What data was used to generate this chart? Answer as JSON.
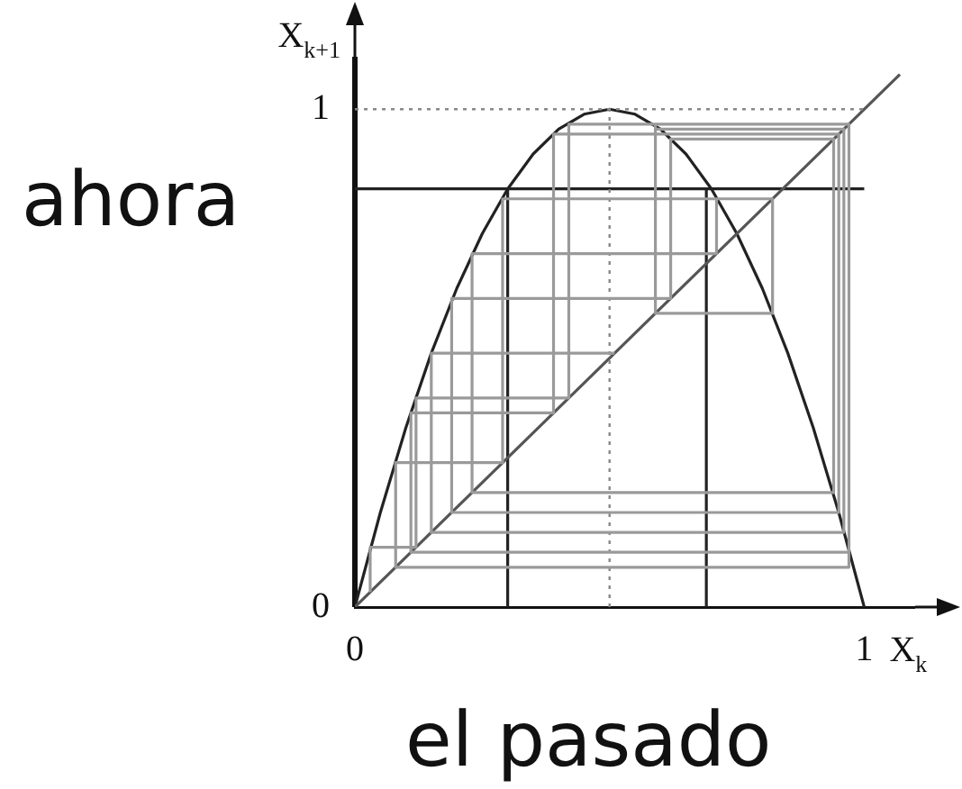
{
  "chart_data": {
    "type": "line",
    "xlabel": "X$_{k}$",
    "ylabel": "X$_{k+1}$",
    "annotations": [
      "ahora",
      "el pasado"
    ],
    "xlim": [
      0,
      1.1
    ],
    "ylim": [
      0,
      1.1
    ],
    "xticks": [
      0,
      1
    ],
    "yticks": [
      0,
      1
    ],
    "grid": false,
    "legend": false,
    "marker": "none",
    "series": [
      {
        "color": "#9a9a9a",
        "line_style": "solid",
        "x": [
          0.03,
          0.03,
          0.12,
          0.12,
          0.42,
          0.42,
          0.97,
          0.97,
          0.11,
          0.11,
          0.39,
          0.39,
          0.95,
          0.95,
          0.19,
          0.19,
          0.62,
          0.62,
          0.94,
          0.94,
          0.23,
          0.23,
          0.71,
          0.71,
          0.82,
          0.82,
          0.59,
          0.59,
          0.97,
          0.97,
          0.08,
          0.08,
          0.29,
          0.29,
          0.82,
          0.82,
          0.59,
          0.59,
          0.96,
          0.96,
          0.15,
          0.15,
          0.51
        ],
        "values": [
          0.03,
          0.12,
          0.12,
          0.42,
          0.42,
          0.97,
          0.97,
          0.11,
          0.11,
          0.39,
          0.39,
          0.95,
          0.95,
          0.19,
          0.19,
          0.62,
          0.62,
          0.94,
          0.94,
          0.23,
          0.23,
          0.71,
          0.71,
          0.82,
          0.82,
          0.59,
          0.59,
          0.97,
          0.97,
          0.08,
          0.08,
          0.29,
          0.29,
          0.82,
          0.82,
          0.59,
          0.59,
          0.96,
          0.96,
          0.15,
          0.15,
          0.51,
          0.51
        ]
      },
      {
        "color": "#888888",
        "line_style": "dotted",
        "x": [
          0,
          1
        ],
        "values": [
          1,
          1
        ]
      },
      {
        "color": "#888888",
        "line_style": "dotted",
        "x": [
          0.5,
          0.5
        ],
        "values": [
          0,
          1
        ]
      },
      {
        "color": "#555555",
        "line_style": "solid",
        "x": [
          0,
          1.07
        ],
        "values": [
          0,
          1.07
        ]
      },
      {
        "color": "#222222",
        "line_style": "solid",
        "x": [
          0,
          1
        ],
        "values": [
          0.84,
          0.84
        ]
      },
      {
        "color": "#222222",
        "line_style": "solid",
        "x": [
          0.3,
          0.3
        ],
        "values": [
          0,
          0.84
        ]
      },
      {
        "color": "#222222",
        "line_style": "solid",
        "x": [
          0.69,
          0.69
        ],
        "values": [
          0,
          0.84
        ]
      },
      {
        "color": "#222222",
        "line_style": "solid",
        "x": [
          0,
          0.05,
          0.1,
          0.15,
          0.2,
          0.25,
          0.3,
          0.35,
          0.4,
          0.45,
          0.5,
          0.55,
          0.6,
          0.65,
          0.7,
          0.75,
          0.8,
          0.85,
          0.9,
          0.95,
          1
        ],
        "values": [
          0,
          0.19,
          0.36,
          0.51,
          0.64,
          0.75,
          0.84,
          0.91,
          0.96,
          0.99,
          1,
          0.99,
          0.96,
          0.91,
          0.84,
          0.75,
          0.64,
          0.51,
          0.36,
          0.19,
          0
        ]
      }
    ]
  }
}
